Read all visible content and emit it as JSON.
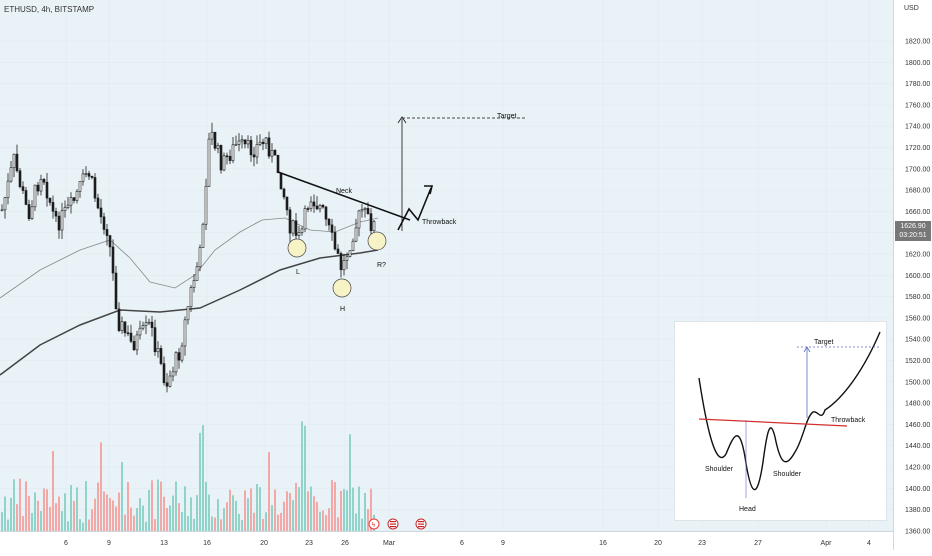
{
  "header": {
    "symbol_title": "ETHUSD, 4h, BITSTAMP"
  },
  "price_axis": {
    "unit": "USD",
    "labels": [
      "1820.00",
      "1800.00",
      "1780.00",
      "1760.00",
      "1740.00",
      "1720.00",
      "1700.00",
      "1680.00",
      "1660.00",
      "1640.00",
      "1620.00",
      "1600.00",
      "1580.00",
      "1560.00",
      "1540.00",
      "1520.00",
      "1500.00",
      "1480.00",
      "1460.00",
      "1440.00",
      "1420.00",
      "1400.00",
      "1380.00",
      "1360.00"
    ],
    "current_price": "1626.90",
    "countdown": "03:20:51"
  },
  "time_axis": {
    "labels": [
      "6",
      "9",
      "13",
      "16",
      "20",
      "23",
      "26",
      "Mar",
      "6",
      "9",
      "16",
      "20",
      "23",
      "27",
      "Apr",
      "4"
    ]
  },
  "annotations": {
    "target": "Target",
    "neck": "Neck",
    "throwback": "Throwback",
    "left_shoulder": "L",
    "head": "H",
    "right_shoulder": "R?"
  },
  "inset": {
    "target": "Target",
    "throwback": "Throwback",
    "left_shoulder": "Shoulder",
    "head": "Head",
    "right_shoulder": "Shoulder"
  },
  "colors": {
    "up": "#26a69a",
    "down": "#ef5350",
    "candle": "#1c1c1c",
    "ma": "#555555",
    "neckline_inset": "#d32f2f",
    "target_line": "#5c6bc0"
  }
}
